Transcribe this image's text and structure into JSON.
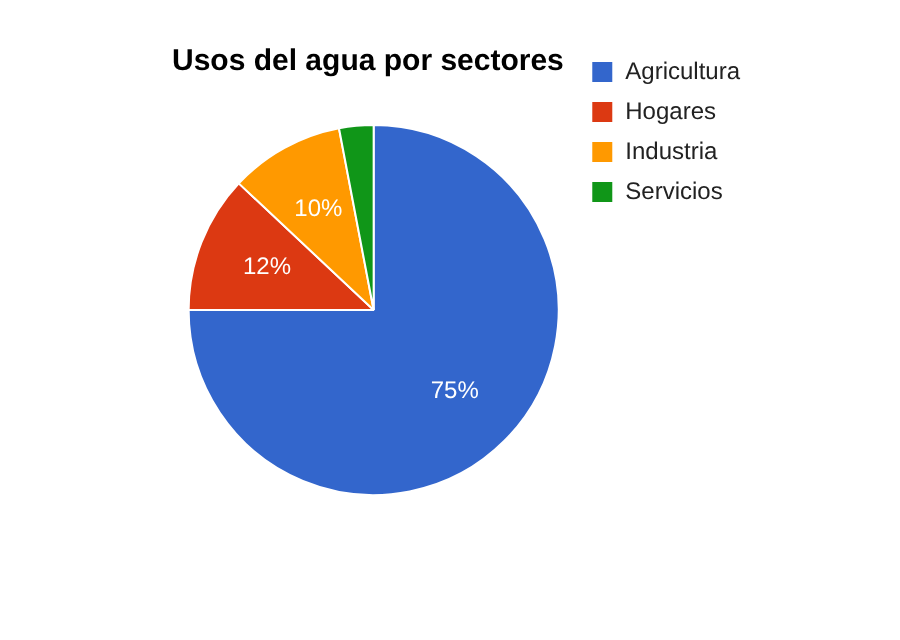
{
  "chart_data": {
    "type": "pie",
    "title": "Usos del agua por sectores",
    "categories": [
      "Agricultura",
      "Hogares",
      "Industria",
      "Servicios"
    ],
    "values": [
      75,
      12,
      10,
      3
    ],
    "colors": [
      "#3366cc",
      "#dc3912",
      "#ff9900",
      "#109618"
    ],
    "value_labels": [
      "75%",
      "12%",
      "10%",
      null
    ],
    "legend": "top right"
  }
}
